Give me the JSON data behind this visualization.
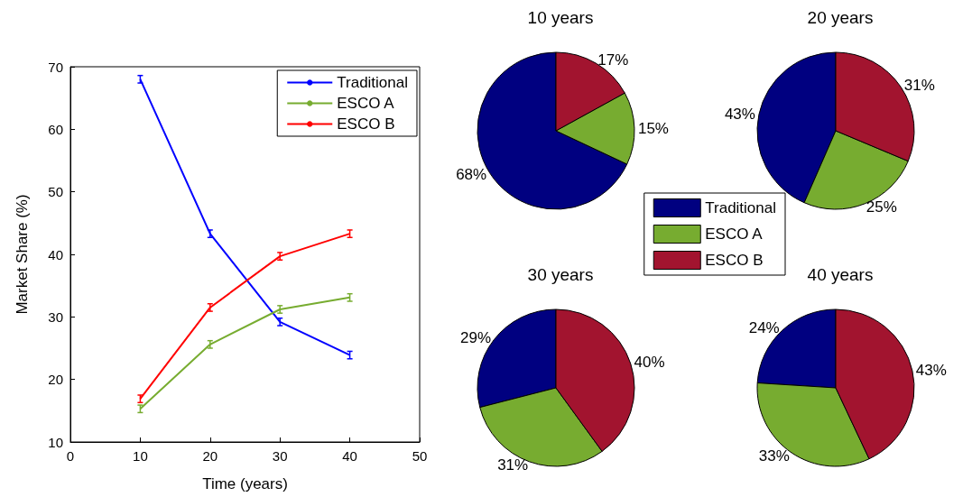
{
  "chart_data": [
    {
      "type": "line",
      "xlabel": "Time (years)",
      "ylabel": "Market Share (%)",
      "x": [
        10,
        20,
        30,
        40
      ],
      "xlim": [
        0,
        50
      ],
      "xticks": [
        0,
        10,
        20,
        30,
        40,
        50
      ],
      "ylim": [
        10,
        70
      ],
      "yticks": [
        10,
        20,
        30,
        40,
        50,
        60,
        70
      ],
      "grid": false,
      "legend": "top right",
      "line_style": "solid",
      "series": [
        {
          "name": "Traditional",
          "color": "#0000ff",
          "values": [
            68.0,
            43.3,
            29.2,
            23.9
          ],
          "errors": [
            0.6,
            0.6,
            0.6,
            0.6
          ]
        },
        {
          "name": "ESCO A",
          "color": "#77ac30",
          "values": [
            15.3,
            25.6,
            31.2,
            33.1
          ],
          "errors": [
            0.6,
            0.6,
            0.6,
            0.6
          ]
        },
        {
          "name": "ESCO B",
          "color": "#ff0000",
          "values": [
            16.9,
            31.5,
            39.7,
            43.3
          ],
          "errors": [
            0.6,
            0.6,
            0.6,
            0.6
          ]
        }
      ]
    },
    {
      "type": "pie",
      "title": "10 years",
      "categories": [
        "Traditional",
        "ESCO A",
        "ESCO B"
      ],
      "values": [
        68,
        15,
        17
      ],
      "value_labels": [
        "68%",
        "15%",
        "17%"
      ],
      "colors": [
        "#000080",
        "#77ac30",
        "#a2142f"
      ],
      "legend": "bottom right"
    },
    {
      "type": "pie",
      "title": "20 years",
      "categories": [
        null,
        null,
        null
      ],
      "values": [
        43,
        25,
        31
      ],
      "value_labels": [
        "43%",
        "25%",
        "31%"
      ],
      "colors": [
        "#000080",
        "#77ac30",
        "#a2142f"
      ]
    },
    {
      "type": "pie",
      "title": "30 years",
      "categories": [
        null,
        null,
        null
      ],
      "values": [
        29,
        31,
        40
      ],
      "value_labels": [
        "29%",
        "31%",
        "40%"
      ],
      "colors": [
        "#000080",
        "#77ac30",
        "#a2142f"
      ]
    },
    {
      "type": "pie",
      "title": "40 years",
      "categories": [
        null,
        null,
        null
      ],
      "values": [
        24,
        33,
        43
      ],
      "value_labels": [
        "24%",
        "33%",
        "43%"
      ],
      "colors": [
        "#000080",
        "#77ac30",
        "#a2142f"
      ]
    }
  ]
}
